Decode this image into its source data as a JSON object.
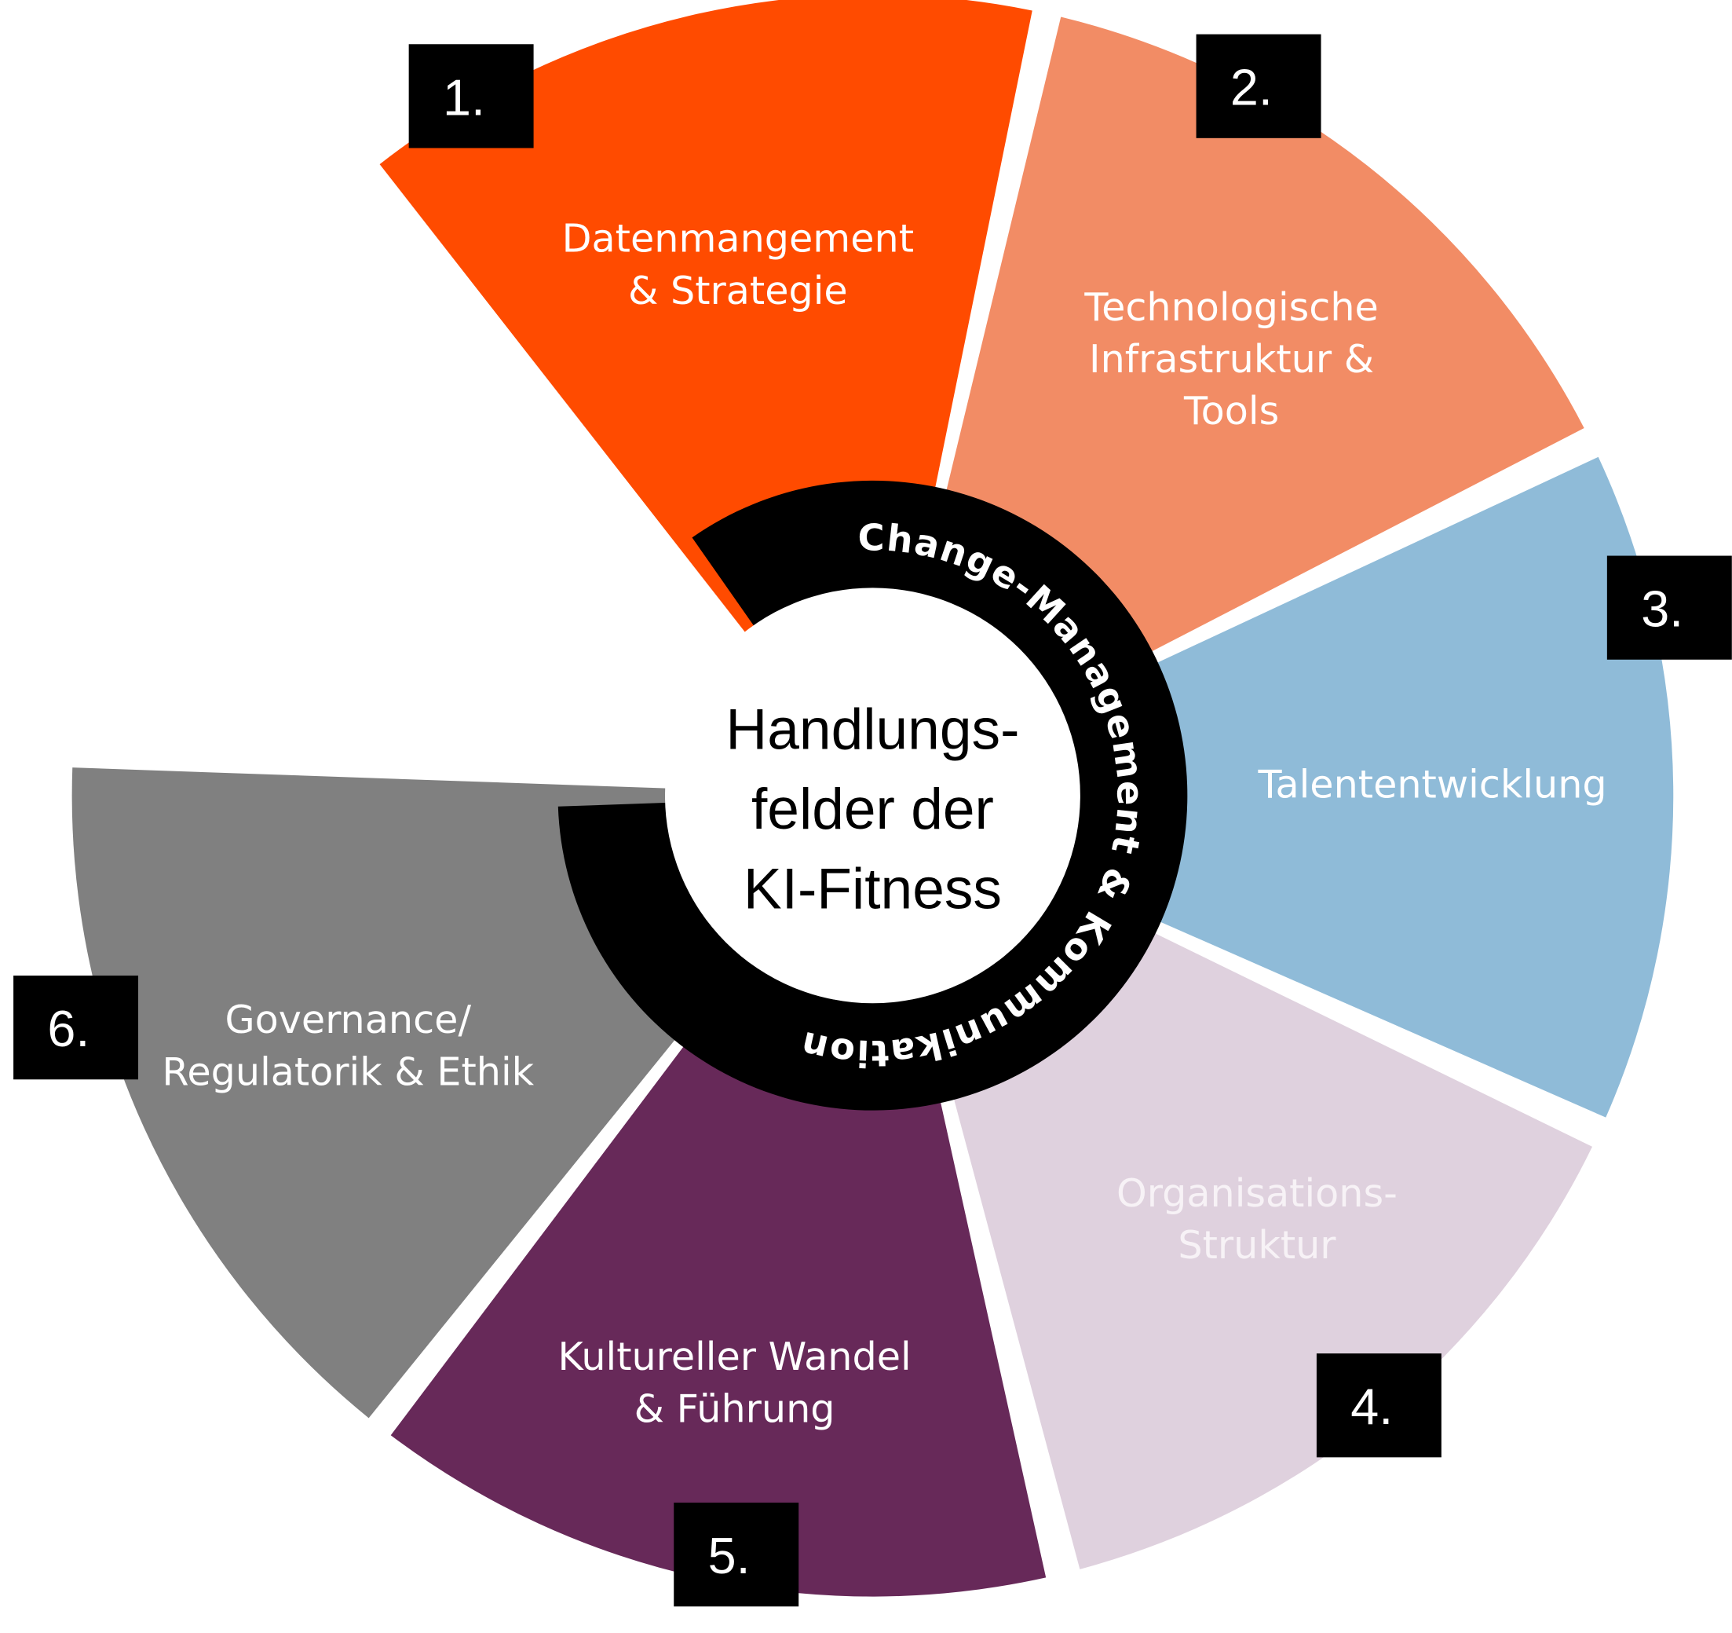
{
  "center": {
    "lines": [
      "Handlungs-",
      "felder der",
      "KI-Fitness"
    ]
  },
  "ring": {
    "text": "Change-Management & Kommunikation",
    "color": "#000000"
  },
  "segments": [
    {
      "number": "1.",
      "lines": [
        "Datenmangement",
        "& Strategie"
      ],
      "color": "#FF4B00",
      "text_color": "#FFFFFF"
    },
    {
      "number": "2.",
      "lines": [
        "Technologische",
        "Infrastruktur &",
        "Tools"
      ],
      "color": "#F28C65",
      "text_color": "#FFFFFF"
    },
    {
      "number": "3.",
      "lines": [
        "Talententwicklung"
      ],
      "color": "#8FBBD8",
      "text_color": "#FFFFFF"
    },
    {
      "number": "4.",
      "lines": [
        "Organisations-",
        "Struktur"
      ],
      "color": "#DFD1DE",
      "text_color": "#F7F2F6"
    },
    {
      "number": "5.",
      "lines": [
        "Kultureller Wandel",
        "& Führung"
      ],
      "color": "#672959",
      "text_color": "#FFFFFF"
    },
    {
      "number": "6.",
      "lines": [
        "Governance/",
        "Regulatorik & Ethik"
      ],
      "color": "#808080",
      "text_color": "#FFFFFF"
    }
  ]
}
